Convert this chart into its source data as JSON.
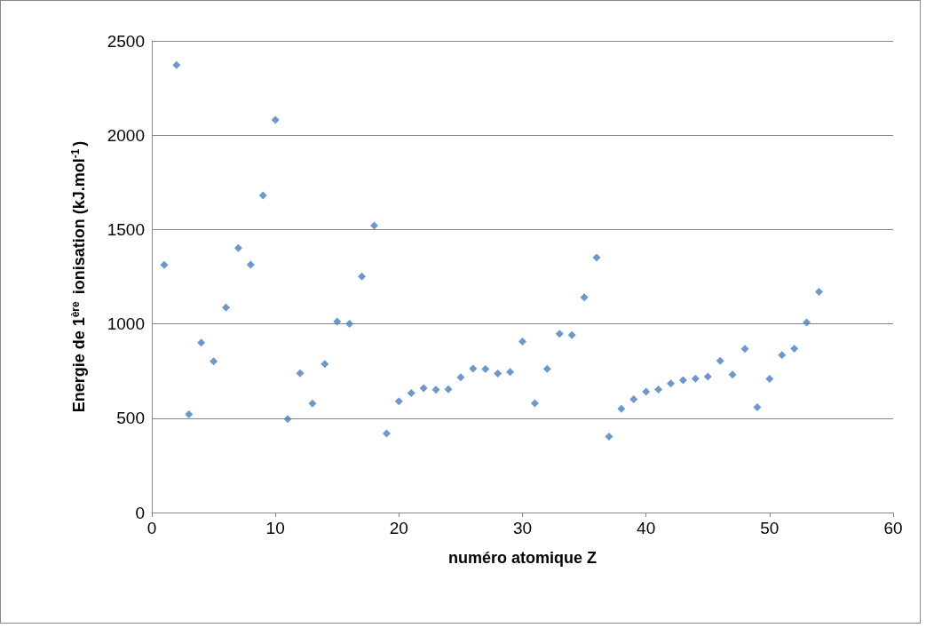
{
  "chart_data": {
    "type": "scatter",
    "xlabel": "numéro atomique Z",
    "ylabel": "Energie de 1$^{ère}$ ionisation (kJ.mol$^{-1}$)",
    "x": [
      1,
      2,
      3,
      4,
      5,
      6,
      7,
      8,
      9,
      10,
      11,
      12,
      13,
      14,
      15,
      16,
      17,
      18,
      19,
      20,
      21,
      22,
      23,
      24,
      25,
      26,
      27,
      28,
      29,
      30,
      31,
      32,
      33,
      34,
      35,
      36,
      37,
      38,
      39,
      40,
      41,
      42,
      43,
      44,
      45,
      46,
      47,
      48,
      49,
      50,
      51,
      52,
      53,
      54
    ],
    "series": [
      {
        "color": "#4a7ebb",
        "values": [
          1312,
          2372,
          520,
          900,
          801,
          1086,
          1402,
          1314,
          1681,
          2081,
          496,
          738,
          578,
          787,
          1012,
          1000,
          1251,
          1521,
          419,
          590,
          633,
          659,
          651,
          653,
          717,
          763,
          760,
          737,
          745,
          906,
          579,
          762,
          947,
          941,
          1140,
          1351,
          403,
          550,
          600,
          640,
          652,
          684,
          702,
          710,
          720,
          804,
          731,
          868,
          558,
          709,
          834,
          869,
          1008,
          1170
        ]
      }
    ],
    "xlim": [
      0,
      60
    ],
    "xticks": [
      0,
      10,
      20,
      30,
      40,
      50,
      60
    ],
    "ylim": [
      0,
      2500
    ],
    "yticks": [
      0,
      500,
      1000,
      1500,
      2000,
      2500
    ],
    "grid": "y",
    "marker": "diamond"
  }
}
